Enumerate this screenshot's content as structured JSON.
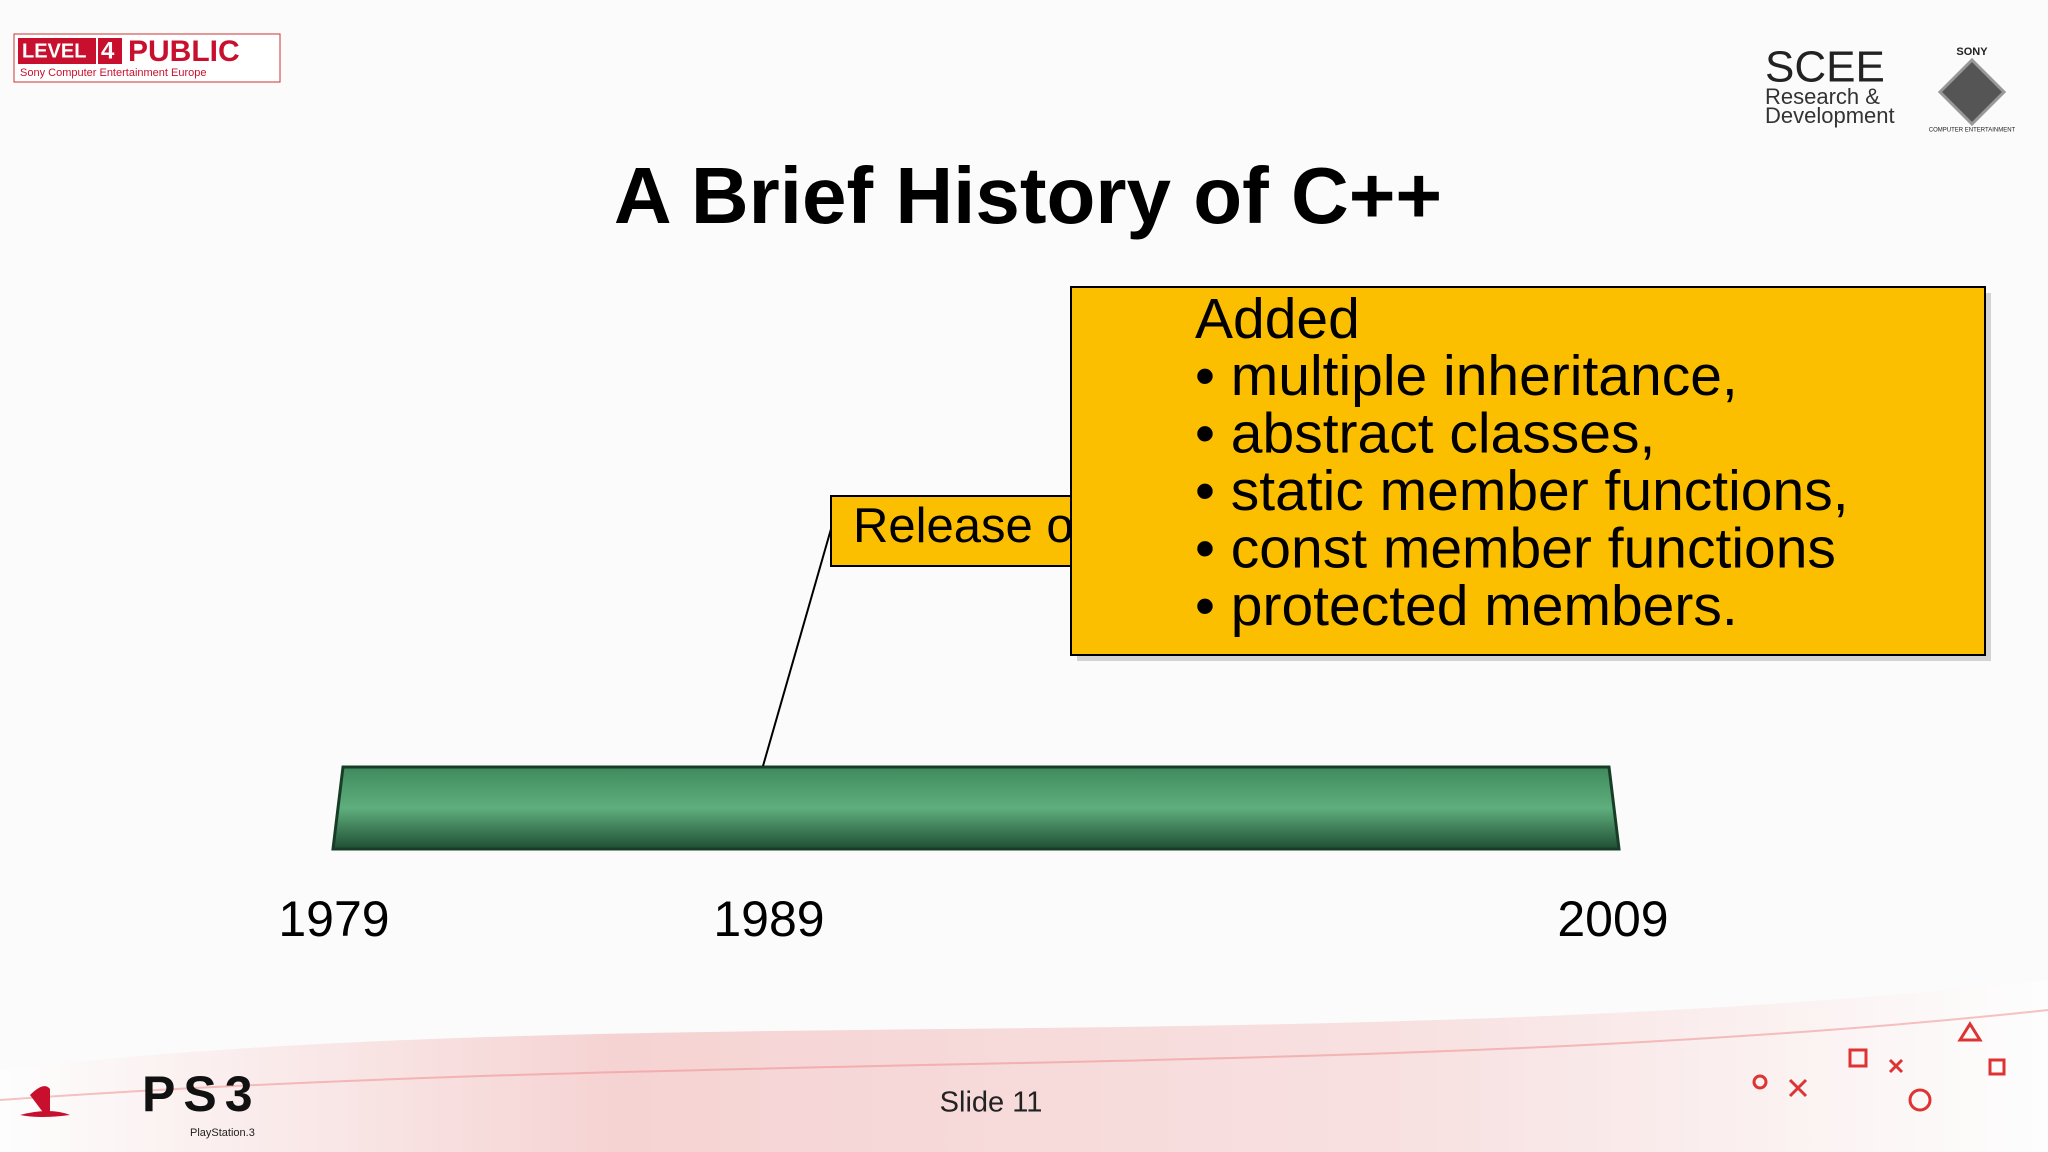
{
  "header": {
    "badge": {
      "level": "LEVEL",
      "number": "4",
      "class": "PUBLIC",
      "org": "Sony Computer Entertainment Europe"
    },
    "scee": {
      "name": "SCEE",
      "line1": "Research &",
      "line2": "Development"
    },
    "sony": {
      "name": "SONY",
      "sub": "COMPUTER ENTERTAINMENT"
    }
  },
  "title": "A Brief History of C++",
  "callouts": {
    "release": "Release of",
    "added": {
      "heading": "Added",
      "items": [
        "• multiple inheritance,",
        "• abstract classes,",
        "• static member functions,",
        "• const member functions",
        "• protected members."
      ]
    }
  },
  "timeline": {
    "years": [
      "1979",
      "1989",
      "2009"
    ]
  },
  "footer": {
    "ps3": "PS3",
    "playstation": "PlayStation.3",
    "slide": "Slide 11"
  }
}
